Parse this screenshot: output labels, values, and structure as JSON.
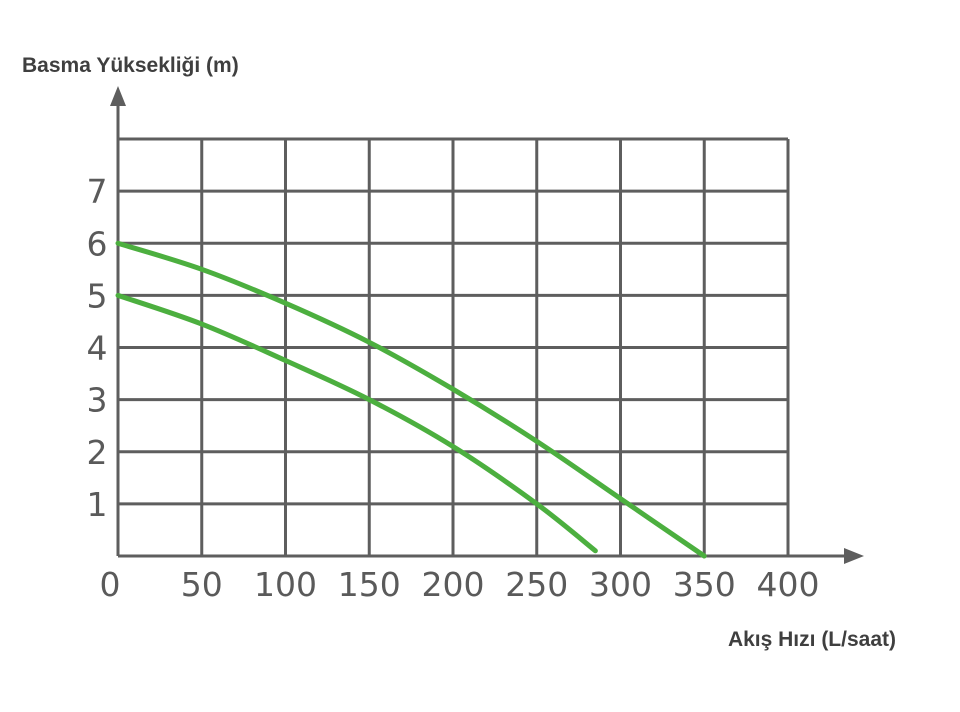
{
  "chart_data": {
    "type": "line",
    "ylabel": "Basma Yüksekliği (m)",
    "xlabel": "Akış Hızı (L/saat)",
    "xlim": [
      0,
      400
    ],
    "ylim": [
      0,
      8
    ],
    "x_ticks": [
      0,
      50,
      100,
      150,
      200,
      250,
      300,
      350,
      400
    ],
    "y_ticks": [
      1,
      2,
      3,
      4,
      5,
      6,
      7
    ],
    "grid": true,
    "line_color": "#4caf3f",
    "series": [
      {
        "x": [
          0,
          50,
          100,
          150,
          200,
          250,
          300,
          350
        ],
        "y": [
          6,
          5.5,
          4.85,
          4.1,
          3.2,
          2.2,
          1.1,
          0
        ]
      },
      {
        "x": [
          0,
          50,
          100,
          150,
          200,
          250,
          285
        ],
        "y": [
          5,
          4.45,
          3.75,
          3.0,
          2.1,
          1.0,
          0.1
        ]
      }
    ]
  }
}
